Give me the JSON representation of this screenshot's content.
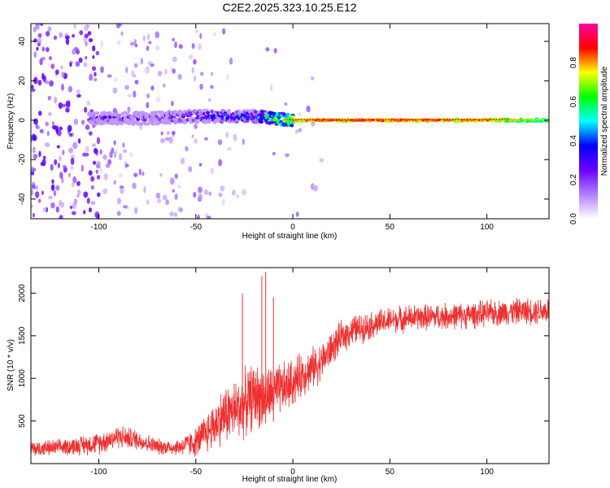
{
  "title": "C2E2.2025.323.10.25.E12",
  "chart_data": [
    {
      "type": "heatmap",
      "title": "C2E2.2025.323.10.25.E12",
      "xlabel": "Height of straight line (km)",
      "ylabel": "Frequency (Hz)",
      "xlim": [
        -135,
        132
      ],
      "ylim": [
        -50,
        49
      ],
      "xticks": [
        -100,
        -50,
        0,
        50,
        100
      ],
      "yticks": [
        -40,
        -20,
        0,
        20,
        40
      ],
      "colorbar": {
        "label": "Normalized spectral amplitude",
        "range": [
          0,
          1
        ],
        "ticks": [
          "0.0",
          "0.2",
          "0.4",
          "0.6",
          "0.8"
        ],
        "colors": [
          "#ffffff",
          "#b080ff",
          "#6a00ff",
          "#0000ff",
          "#00ffff",
          "#00ff00",
          "#ffff00",
          "#ff0000",
          "#ff00a0"
        ]
      },
      "ridge": {
        "description_free": true,
        "x": [
          -100,
          -75,
          -50,
          -35,
          -20,
          -10,
          0,
          25,
          50,
          75,
          100,
          132
        ],
        "frequency_hz": [
          1,
          1,
          2,
          2,
          2,
          1,
          0,
          0,
          0,
          0,
          0,
          0
        ],
        "amplitude": [
          0.35,
          0.35,
          0.45,
          0.5,
          0.55,
          0.75,
          0.9,
          0.95,
          0.95,
          0.92,
          0.9,
          0.7
        ]
      }
    },
    {
      "type": "line",
      "xlabel": "Height of straight line (km)",
      "ylabel": "SNR (10 * v/v)",
      "xlim": [
        -135,
        132
      ],
      "ylim": [
        0,
        2300
      ],
      "xticks": [
        -100,
        -50,
        0,
        50,
        100
      ],
      "yticks": [
        500,
        1000,
        1500,
        2000
      ],
      "color": "#f03030",
      "series": [
        {
          "x": [
            -135,
            -120,
            -100,
            -90,
            -80,
            -70,
            -60,
            -50,
            -45,
            -40,
            -35,
            -30,
            -25,
            -20,
            -15,
            -10,
            -5,
            0,
            5,
            10,
            15,
            20,
            25,
            30,
            40,
            50,
            60,
            70,
            80,
            90,
            100,
            110,
            120,
            132
          ],
          "y": [
            170,
            190,
            240,
            320,
            280,
            200,
            190,
            250,
            350,
            470,
            580,
            620,
            700,
            800,
            780,
            820,
            880,
            950,
            1050,
            1120,
            1200,
            1350,
            1480,
            1560,
            1620,
            1680,
            1710,
            1720,
            1730,
            1740,
            1760,
            1780,
            1790,
            1800
          ],
          "noise": [
            110,
            110,
            150,
            160,
            140,
            110,
            110,
            200,
            280,
            330,
            400,
            420,
            450,
            450,
            400,
            380,
            350,
            330,
            300,
            280,
            260,
            230,
            220,
            210,
            190,
            180,
            180,
            180,
            180,
            180,
            180,
            180,
            180,
            190
          ]
        }
      ],
      "peaks": [
        {
          "x": -26,
          "y": 2000
        },
        {
          "x": -16,
          "y": 2200
        },
        {
          "x": -14,
          "y": 2250
        },
        {
          "x": -10,
          "y": 1950
        }
      ]
    }
  ]
}
